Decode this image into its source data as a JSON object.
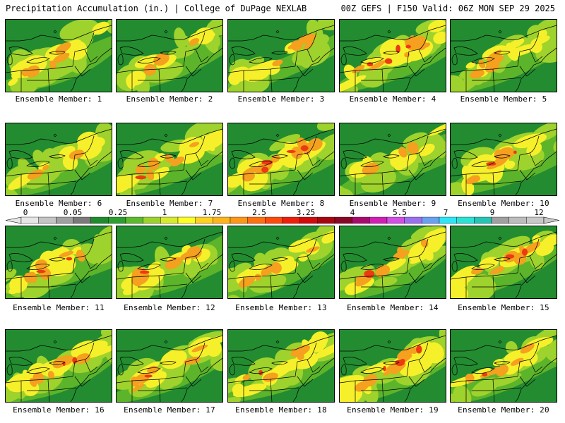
{
  "header": {
    "title": "Precipitation Accumulation (in.) | College of DuPage NEXLAB",
    "run_info": "00Z GEFS | F150 Valid: 06Z MON SEP 29 2025"
  },
  "member_prefix": "Ensemble Member:",
  "members": [
    {
      "label": "Ensemble Member: 1",
      "intensity": 0.5
    },
    {
      "label": "Ensemble Member: 2",
      "intensity": 0.3
    },
    {
      "label": "Ensemble Member: 3",
      "intensity": 0.45
    },
    {
      "label": "Ensemble Member: 4",
      "intensity": 0.85
    },
    {
      "label": "Ensemble Member: 5",
      "intensity": 0.5
    },
    {
      "label": "Ensemble Member: 6",
      "intensity": 0.35
    },
    {
      "label": "Ensemble Member: 7",
      "intensity": 0.55
    },
    {
      "label": "Ensemble Member: 8",
      "intensity": 0.85
    },
    {
      "label": "Ensemble Member: 9",
      "intensity": 0.4
    },
    {
      "label": "Ensemble Member: 10",
      "intensity": 0.65
    },
    {
      "label": "Ensemble Member: 11",
      "intensity": 0.65
    },
    {
      "label": "Ensemble Member: 12",
      "intensity": 0.55
    },
    {
      "label": "Ensemble Member: 13",
      "intensity": 0.45
    },
    {
      "label": "Ensemble Member: 14",
      "intensity": 0.55
    },
    {
      "label": "Ensemble Member: 15",
      "intensity": 0.65
    },
    {
      "label": "Ensemble Member: 16",
      "intensity": 0.65
    },
    {
      "label": "Ensemble Member: 17",
      "intensity": 0.6
    },
    {
      "label": "Ensemble Member: 18",
      "intensity": 0.6
    },
    {
      "label": "Ensemble Member: 19",
      "intensity": 0.9
    },
    {
      "label": "Ensemble Member: 20",
      "intensity": 0.55
    }
  ],
  "colorbar": {
    "tick_labels": [
      "0",
      "0.05",
      "0.25",
      "1",
      "1.75",
      "2.5",
      "3.25",
      "4",
      "5.5",
      "7",
      "9",
      "12"
    ],
    "colors": [
      "#e6e6e6",
      "#c4c4c4",
      "#a0a0a0",
      "#7a7a7a",
      "#1e8c2a",
      "#2aa02e",
      "#5cbb2c",
      "#9ed22a",
      "#d6ec2a",
      "#ffff22",
      "#ffd21e",
      "#ffb41a",
      "#ff9614",
      "#ff700e",
      "#ff4a0a",
      "#f01e08",
      "#d20a0a",
      "#a8060e",
      "#8a0626",
      "#aa0a6e",
      "#d21eb4",
      "#d24ee6",
      "#9a70f0",
      "#6aa0f2",
      "#2ae6f6",
      "#28e2d6",
      "#22c6b4",
      "#a0a0a0",
      "#bdbdbd",
      "#c8c8c8"
    ]
  },
  "colors": {
    "background_green": "#238c30",
    "moderate_green": "#5cb42a",
    "light_green": "#9ed22c",
    "yellow": "#f6f02a",
    "orange": "#f5a01e",
    "red": "#ec3a12"
  }
}
